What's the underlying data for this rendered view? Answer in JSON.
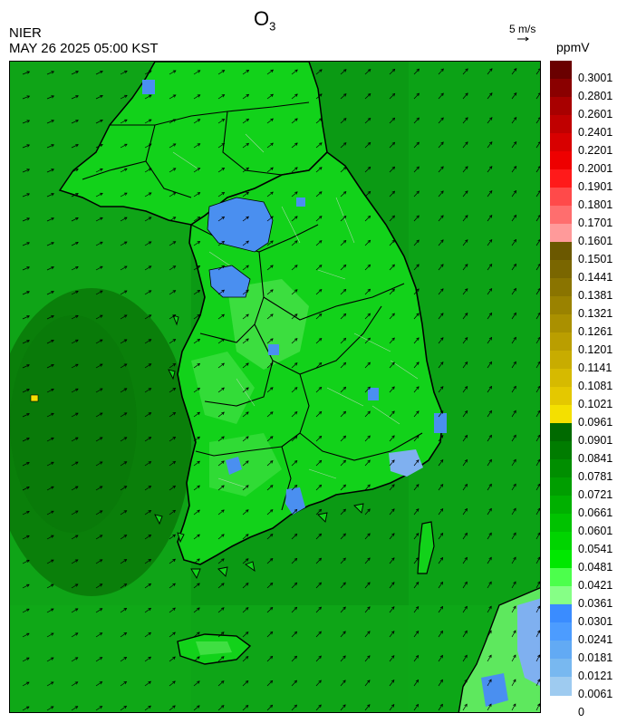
{
  "header": {
    "title_main": "O",
    "title_sub": "3",
    "organization": "NIER",
    "datetime": "MAY 26 2025 05:00 KST"
  },
  "wind_scale": {
    "label": "5 m/s"
  },
  "legend": {
    "unit": "ppmV",
    "labels": [
      "0.3001",
      "0.2801",
      "0.2601",
      "0.2401",
      "0.2201",
      "0.2001",
      "0.1901",
      "0.1801",
      "0.1701",
      "0.1601",
      "0.1501",
      "0.1441",
      "0.1381",
      "0.1321",
      "0.1261",
      "0.1201",
      "0.1141",
      "0.1081",
      "0.1021",
      "0.0961",
      "0.0901",
      "0.0841",
      "0.0781",
      "0.0721",
      "0.0661",
      "0.0601",
      "0.0541",
      "0.0481",
      "0.0421",
      "0.0361",
      "0.0301",
      "0.0241",
      "0.0181",
      "0.0121",
      "0.0061",
      "0"
    ],
    "colors": [
      "#6a0000",
      "#8a0000",
      "#a80000",
      "#c00000",
      "#d80000",
      "#ee0000",
      "#ff1a1a",
      "#ff4a4a",
      "#ff6e6e",
      "#ff9a9a",
      "#6b5800",
      "#7a6600",
      "#8a7400",
      "#9a8200",
      "#aa9000",
      "#ba9e00",
      "#c8ac00",
      "#d6ba00",
      "#e4c800",
      "#f4e000",
      "#006a00",
      "#007c00",
      "#008e00",
      "#009e00",
      "#00b000",
      "#00c200",
      "#00d400",
      "#00e800",
      "#4cff4c",
      "#86ff86",
      "#3a8cff",
      "#4c9cff",
      "#62aaf4",
      "#78b8f0",
      "#9ecbf0"
    ]
  },
  "map": {
    "colors": {
      "sea_deep": "#0a7f0a",
      "sea": "#0b9a14",
      "sea_light": "#13b21a",
      "land": "#12d21a",
      "land_light": "#5ee85e",
      "low_blue": "#4a8ff0",
      "low_blue_light": "#7fb0f0",
      "hotspot": "#f4e000"
    }
  }
}
